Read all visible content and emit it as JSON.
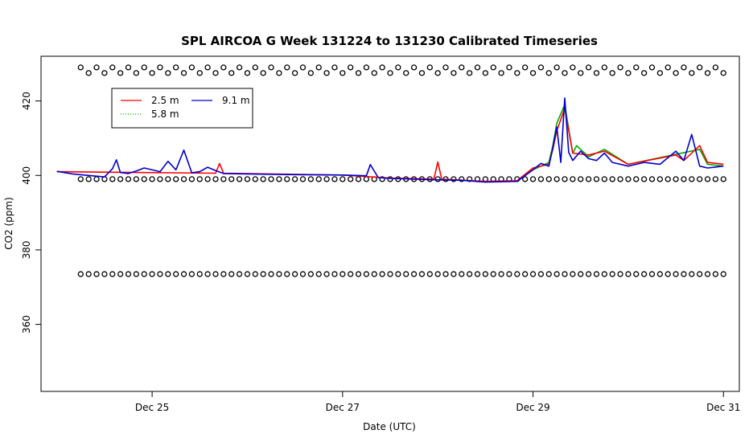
{
  "chart_data": {
    "type": "line",
    "title": "SPL AIRCOA G  Week 131224 to 131230  Calibrated Timeseries",
    "xlabel": "Date (UTC)",
    "ylabel": "CO2 (ppm)",
    "xlim": [
      "2013-12-23T20:00",
      "2013-12-31T04:00"
    ],
    "ylim": [
      342,
      432
    ],
    "x_ticks": [
      {
        "label": "Dec 25",
        "value": "2013-12-25T00:00"
      },
      {
        "label": "Dec 27",
        "value": "2013-12-27T00:00"
      },
      {
        "label": "Dec 29",
        "value": "2013-12-29T00:00"
      },
      {
        "label": "Dec 31",
        "value": "2013-12-31T00:00"
      }
    ],
    "y_ticks": [
      {
        "label": "360",
        "value": 360
      },
      {
        "label": "380",
        "value": 380
      },
      {
        "label": "400",
        "value": 400
      },
      {
        "label": "420",
        "value": 420
      }
    ],
    "legend": {
      "placement": "top-left",
      "entries": [
        {
          "label": "2.5 m",
          "color": "#ff0000",
          "dash": "solid"
        },
        {
          "label": "5.8 m",
          "color": "#00aa00",
          "dash": "dotted"
        },
        {
          "label": "9.1 m",
          "color": "#0000cc",
          "dash": "solid"
        }
      ]
    },
    "series": [
      {
        "name": "9.1 m",
        "color": "#0000cc",
        "x": [
          "2013-12-24T00:00",
          "2013-12-24T04:00",
          "2013-12-24T08:00",
          "2013-12-24T12:00",
          "2013-12-24T14:00",
          "2013-12-24T15:00",
          "2013-12-24T16:00",
          "2013-12-24T18:00",
          "2013-12-24T20:00",
          "2013-12-24T22:00",
          "2013-12-25T02:00",
          "2013-12-25T04:00",
          "2013-12-25T06:00",
          "2013-12-25T08:00",
          "2013-12-25T10:00",
          "2013-12-25T12:00",
          "2013-12-25T14:00",
          "2013-12-25T16:00",
          "2013-12-25T18:00",
          "2013-12-26T00:00",
          "2013-12-26T12:00",
          "2013-12-27T00:00",
          "2013-12-27T06:00",
          "2013-12-27T07:00",
          "2013-12-27T09:00",
          "2013-12-27T12:00",
          "2013-12-28T00:00",
          "2013-12-28T06:00",
          "2013-12-28T12:00",
          "2013-12-28T20:00",
          "2013-12-29T00:00",
          "2013-12-29T02:00",
          "2013-12-29T04:00",
          "2013-12-29T05:00",
          "2013-12-29T06:00",
          "2013-12-29T07:00",
          "2013-12-29T08:00",
          "2013-12-29T09:00",
          "2013-12-29T10:00",
          "2013-12-29T12:00",
          "2013-12-29T14:00",
          "2013-12-29T16:00",
          "2013-12-29T18:00",
          "2013-12-29T20:00",
          "2013-12-30T00:00",
          "2013-12-30T04:00",
          "2013-12-30T08:00",
          "2013-12-30T12:00",
          "2013-12-30T14:00",
          "2013-12-30T16:00",
          "2013-12-30T18:00",
          "2013-12-30T20:00",
          "2013-12-31T00:00"
        ],
        "values": [
          401.1,
          400.4,
          400.0,
          399.6,
          401.8,
          404.2,
          400.8,
          400.5,
          401.2,
          402.0,
          401.0,
          403.8,
          401.5,
          406.8,
          400.7,
          401.0,
          402.2,
          401.3,
          400.5,
          400.4,
          400.2,
          400.1,
          399.9,
          402.9,
          399.4,
          399.2,
          398.8,
          398.7,
          398.2,
          398.4,
          401.5,
          403.2,
          402.5,
          407.5,
          413.0,
          403.5,
          420.8,
          406.2,
          404.0,
          406.5,
          404.5,
          404.0,
          406.0,
          403.5,
          402.5,
          403.5,
          403.0,
          406.5,
          404.0,
          411.0,
          402.5,
          402.0,
          402.5
        ]
      },
      {
        "name": "2.5 m",
        "color": "#ff0000",
        "x": [
          "2013-12-24T00:00",
          "2013-12-25T16:00",
          "2013-12-25T17:00",
          "2013-12-25T18:00",
          "2013-12-26T12:00",
          "2013-12-27T00:00",
          "2013-12-27T12:00",
          "2013-12-27T23:00",
          "2013-12-28T00:00",
          "2013-12-28T01:00",
          "2013-12-28T12:00",
          "2013-12-28T20:00",
          "2013-12-29T00:00",
          "2013-12-29T04:00",
          "2013-12-29T05:00",
          "2013-12-29T06:00",
          "2013-12-29T08:00",
          "2013-12-29T10:00",
          "2013-12-29T14:00",
          "2013-12-29T18:00",
          "2013-12-30T00:00",
          "2013-12-30T12:00",
          "2013-12-30T14:00",
          "2013-12-30T18:00",
          "2013-12-30T20:00",
          "2013-12-31T00:00"
        ],
        "values": [
          401.0,
          400.6,
          403.2,
          400.6,
          400.3,
          400.1,
          399.3,
          399.0,
          403.6,
          399.0,
          398.4,
          398.6,
          402.0,
          403.0,
          407.0,
          412.0,
          418.0,
          406.0,
          405.5,
          406.5,
          403.0,
          405.5,
          404.0,
          408.0,
          403.5,
          403.0
        ]
      },
      {
        "name": "5.8 m",
        "color": "#00aa00",
        "x": [
          "2013-12-29T00:00",
          "2013-12-29T04:00",
          "2013-12-29T05:00",
          "2013-12-29T06:00",
          "2013-12-29T08:00",
          "2013-12-29T10:00",
          "2013-12-29T11:00",
          "2013-12-29T14:00",
          "2013-12-29T18:00",
          "2013-12-30T00:00",
          "2013-12-30T18:00",
          "2013-12-30T20:00",
          "2013-12-31T00:00"
        ],
        "values": [
          401.5,
          403.5,
          408.0,
          414.0,
          419.0,
          406.0,
          408.0,
          405.0,
          407.0,
          403.0,
          407.0,
          403.0,
          402.5
        ]
      }
    ],
    "calibration_points": [
      {
        "name": "upper",
        "y": [
          429,
          427.5
        ]
      },
      {
        "name": "middle",
        "y": [
          399
        ]
      },
      {
        "name": "lower",
        "y": [
          373.5
        ]
      }
    ]
  }
}
